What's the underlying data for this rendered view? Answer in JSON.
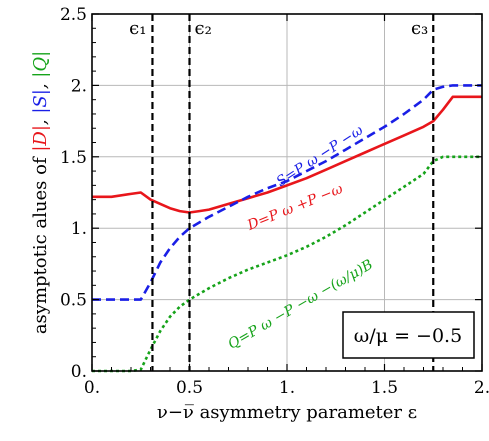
{
  "chart_data": {
    "type": "line",
    "xlabel": "ν−ν̅ asymmetry parameter ε",
    "ylabel": {
      "prefix": "asymptotic alues of ",
      "parts": [
        {
          "text": "|D|",
          "color": "#e8161b"
        },
        {
          "text": ", ",
          "color": "#000000"
        },
        {
          "text": "|S|",
          "color": "#1a1fe6"
        },
        {
          "text": ", ",
          "color": "#000000"
        },
        {
          "text": "|Q|",
          "color": "#16a31a"
        }
      ]
    },
    "xlim": [
      0,
      2
    ],
    "ylim": [
      0,
      2.5
    ],
    "grid": true,
    "x_ticks": [
      {
        "value": 0,
        "label": "0."
      },
      {
        "value": 0.5,
        "label": "0.5"
      },
      {
        "value": 1,
        "label": "1."
      },
      {
        "value": 1.5,
        "label": "1.5"
      },
      {
        "value": 2,
        "label": "2."
      }
    ],
    "y_ticks": [
      {
        "value": 0,
        "label": "0."
      },
      {
        "value": 0.5,
        "label": "0.5"
      },
      {
        "value": 1,
        "label": "1."
      },
      {
        "value": 1.5,
        "label": "1.5"
      },
      {
        "value": 2,
        "label": "2."
      },
      {
        "value": 2.5,
        "label": "2.5"
      }
    ],
    "vlines": [
      {
        "x": 0.31,
        "label": "ϵ₁"
      },
      {
        "x": 0.5,
        "label": "ϵ₂"
      },
      {
        "x": 1.75,
        "label": "ϵ₃"
      }
    ],
    "series": [
      {
        "key": "D",
        "color": "#e8161b",
        "style": "solid",
        "x": [
          0,
          0.1,
          0.2,
          0.25,
          0.3,
          0.35,
          0.4,
          0.45,
          0.5,
          0.55,
          0.6,
          0.7,
          0.8,
          0.9,
          1.0,
          1.1,
          1.2,
          1.3,
          1.4,
          1.5,
          1.6,
          1.7,
          1.75,
          1.8,
          1.85,
          2.0
        ],
        "y": [
          1.22,
          1.22,
          1.24,
          1.25,
          1.2,
          1.17,
          1.14,
          1.12,
          1.11,
          1.12,
          1.13,
          1.17,
          1.21,
          1.25,
          1.3,
          1.35,
          1.41,
          1.47,
          1.53,
          1.59,
          1.65,
          1.71,
          1.75,
          1.83,
          1.92,
          1.92
        ]
      },
      {
        "key": "S",
        "color": "#1a1fe6",
        "style": "dashed",
        "x": [
          0,
          0.2,
          0.25,
          0.3,
          0.35,
          0.4,
          0.45,
          0.5,
          0.55,
          0.6,
          0.7,
          0.8,
          0.9,
          1.0,
          1.1,
          1.2,
          1.3,
          1.4,
          1.5,
          1.6,
          1.7,
          1.75,
          1.8,
          1.85,
          1.9,
          2.0
        ],
        "y": [
          0.5,
          0.5,
          0.5,
          0.62,
          0.76,
          0.86,
          0.94,
          1.0,
          1.04,
          1.08,
          1.15,
          1.22,
          1.28,
          1.33,
          1.4,
          1.47,
          1.55,
          1.63,
          1.71,
          1.8,
          1.9,
          1.97,
          1.99,
          2.0,
          2.0,
          2.0
        ]
      },
      {
        "key": "Q",
        "color": "#16a31a",
        "style": "dotted",
        "x": [
          0,
          0.2,
          0.25,
          0.3,
          0.35,
          0.4,
          0.45,
          0.5,
          0.6,
          0.7,
          0.8,
          0.9,
          1.0,
          1.1,
          1.2,
          1.3,
          1.4,
          1.5,
          1.6,
          1.7,
          1.75,
          1.8,
          2.0
        ],
        "y": [
          0,
          0,
          0.01,
          0.15,
          0.28,
          0.38,
          0.45,
          0.5,
          0.58,
          0.65,
          0.71,
          0.76,
          0.81,
          0.87,
          0.94,
          1.02,
          1.11,
          1.2,
          1.29,
          1.38,
          1.47,
          1.5,
          1.5
        ]
      }
    ],
    "annotations": [
      {
        "key": "S",
        "x": 1.18,
        "y": 1.48,
        "angle": -33,
        "color": "#1a1fe6",
        "text": "S=P ω −P −ω",
        "arrows": [
          "S",
          "P",
          "P"
        ]
      },
      {
        "key": "D",
        "x": 1.05,
        "y": 1.12,
        "angle": -22,
        "color": "#e8161b",
        "text": "D=P ω +P −ω",
        "arrows": [
          "D",
          "P",
          "P"
        ]
      },
      {
        "key": "Q",
        "x": 1.08,
        "y": 0.44,
        "angle": -30,
        "color": "#16a31a",
        "text": "Q=P ω −P −ω −(ω/μ)B",
        "arrows": [
          "Q",
          "P",
          "P",
          "B"
        ]
      }
    ],
    "legend_box": {
      "text": "ω/μ = −0.5",
      "position": "bottom-right"
    }
  }
}
